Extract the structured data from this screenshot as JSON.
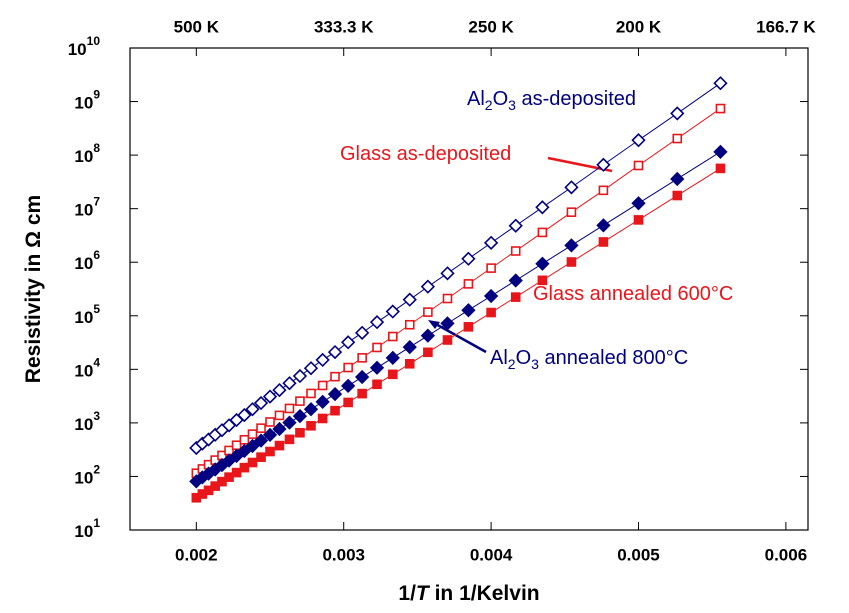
{
  "chart_data": {
    "type": "scatter",
    "xlabel_parts": [
      "1/",
      "T",
      " in 1/Kelvin"
    ],
    "ylabel": "Resistivity in Ω cm",
    "xlim": [
      0.00155,
      0.00615
    ],
    "xticks": [
      0.002,
      0.003,
      0.004,
      0.005,
      0.006
    ],
    "x2ticks": [
      {
        "value": 0.002,
        "label": "500 K"
      },
      {
        "value": 0.003,
        "label": "333.3 K"
      },
      {
        "value": 0.004,
        "label": "250 K"
      },
      {
        "value": 0.005,
        "label": "200 K"
      },
      {
        "value": 0.006,
        "label": "166.7 K"
      }
    ],
    "ylim": [
      10,
      10000000000
    ],
    "log_y": true,
    "yticks": [
      {
        "value": 10,
        "label": "10",
        "exponent": "1"
      },
      {
        "value": 100,
        "label": "10",
        "exponent": "2"
      },
      {
        "value": 1000,
        "label": "10",
        "exponent": "3"
      },
      {
        "value": 10000,
        "label": "10",
        "exponent": "4"
      },
      {
        "value": 100000,
        "label": "10",
        "exponent": "5"
      },
      {
        "value": 1000000,
        "label": "10",
        "exponent": "6"
      },
      {
        "value": 10000000,
        "label": "10",
        "exponent": "7"
      },
      {
        "value": 100000000,
        "label": "10",
        "exponent": "8"
      },
      {
        "value": 1000000000,
        "label": "10",
        "exponent": "9"
      },
      {
        "value": 10000000000,
        "label": "10",
        "exponent": "10"
      }
    ],
    "x": [
      0.002,
      0.002041,
      0.002083,
      0.002128,
      0.002174,
      0.002222,
      0.002273,
      0.002326,
      0.002381,
      0.002439,
      0.0025,
      0.002564,
      0.002632,
      0.002703,
      0.002778,
      0.002857,
      0.002941,
      0.00303,
      0.003125,
      0.003226,
      0.003333,
      0.003448,
      0.003571,
      0.003704,
      0.003846,
      0.004,
      0.004167,
      0.004348,
      0.004545,
      0.004762,
      0.005,
      0.005263,
      0.005556
    ],
    "series": [
      {
        "color": "#000080",
        "marker": "diamond",
        "filled": false,
        "values": [
          340,
          410,
          490,
          600,
          730,
          900,
          1130,
          1400,
          1800,
          2350,
          3100,
          4100,
          5500,
          7500,
          10500,
          15000,
          21000,
          32000,
          48000,
          76000,
          120000,
          200000,
          350000,
          620000,
          1160000,
          2300000,
          4800000,
          10600000,
          25000000,
          66000000,
          190000000,
          600000000,
          2200000000
        ]
      },
      {
        "color": "#e8161b",
        "marker": "square",
        "filled": false,
        "values": [
          115,
          138,
          166,
          202,
          247,
          306,
          383,
          483,
          617,
          797,
          1040,
          1380,
          1860,
          2550,
          3550,
          5000,
          7300,
          10800,
          16400,
          25600,
          41000,
          68000,
          117000,
          210000,
          394000,
          776000,
          1620000,
          3600000,
          8600000,
          22000000,
          64000000,
          204000000,
          740000000
        ]
      },
      {
        "color": "#000080",
        "marker": "diamond",
        "filled": true,
        "values": [
          81,
          96,
          113,
          135,
          163,
          197,
          241,
          298,
          371,
          467,
          596,
          769,
          1010,
          1340,
          1800,
          2470,
          3450,
          4920,
          7180,
          10700,
          16400,
          26000,
          42500,
          72100,
          127000,
          234000,
          456000,
          938000,
          2060000,
          4880000,
          12600000,
          35900000,
          115000000
        ]
      },
      {
        "color": "#e8161b",
        "marker": "square",
        "filled": true,
        "values": [
          40,
          47,
          55,
          66,
          80,
          97,
          118,
          146,
          182,
          229,
          292,
          377,
          493,
          655,
          883,
          1210,
          1690,
          2410,
          3520,
          5260,
          8060,
          12700,
          20800,
          35300,
          62200,
          115000,
          223000,
          459000,
          1010000,
          2390000,
          6170000,
          17600000,
          56500000
        ]
      }
    ],
    "annotations": [
      {
        "parts": [
          "Al",
          "2",
          "O",
          "3",
          " as-deposited"
        ],
        "color": "#000080"
      },
      {
        "parts": [
          "Glass as-deposited"
        ],
        "color": "#e8161b"
      },
      {
        "parts": [
          "Glass annealed 600°C"
        ],
        "color": "#e8161b"
      },
      {
        "parts": [
          "Al",
          "2",
          "O",
          "3",
          " annealed 800°C"
        ],
        "color": "#000080"
      }
    ]
  }
}
